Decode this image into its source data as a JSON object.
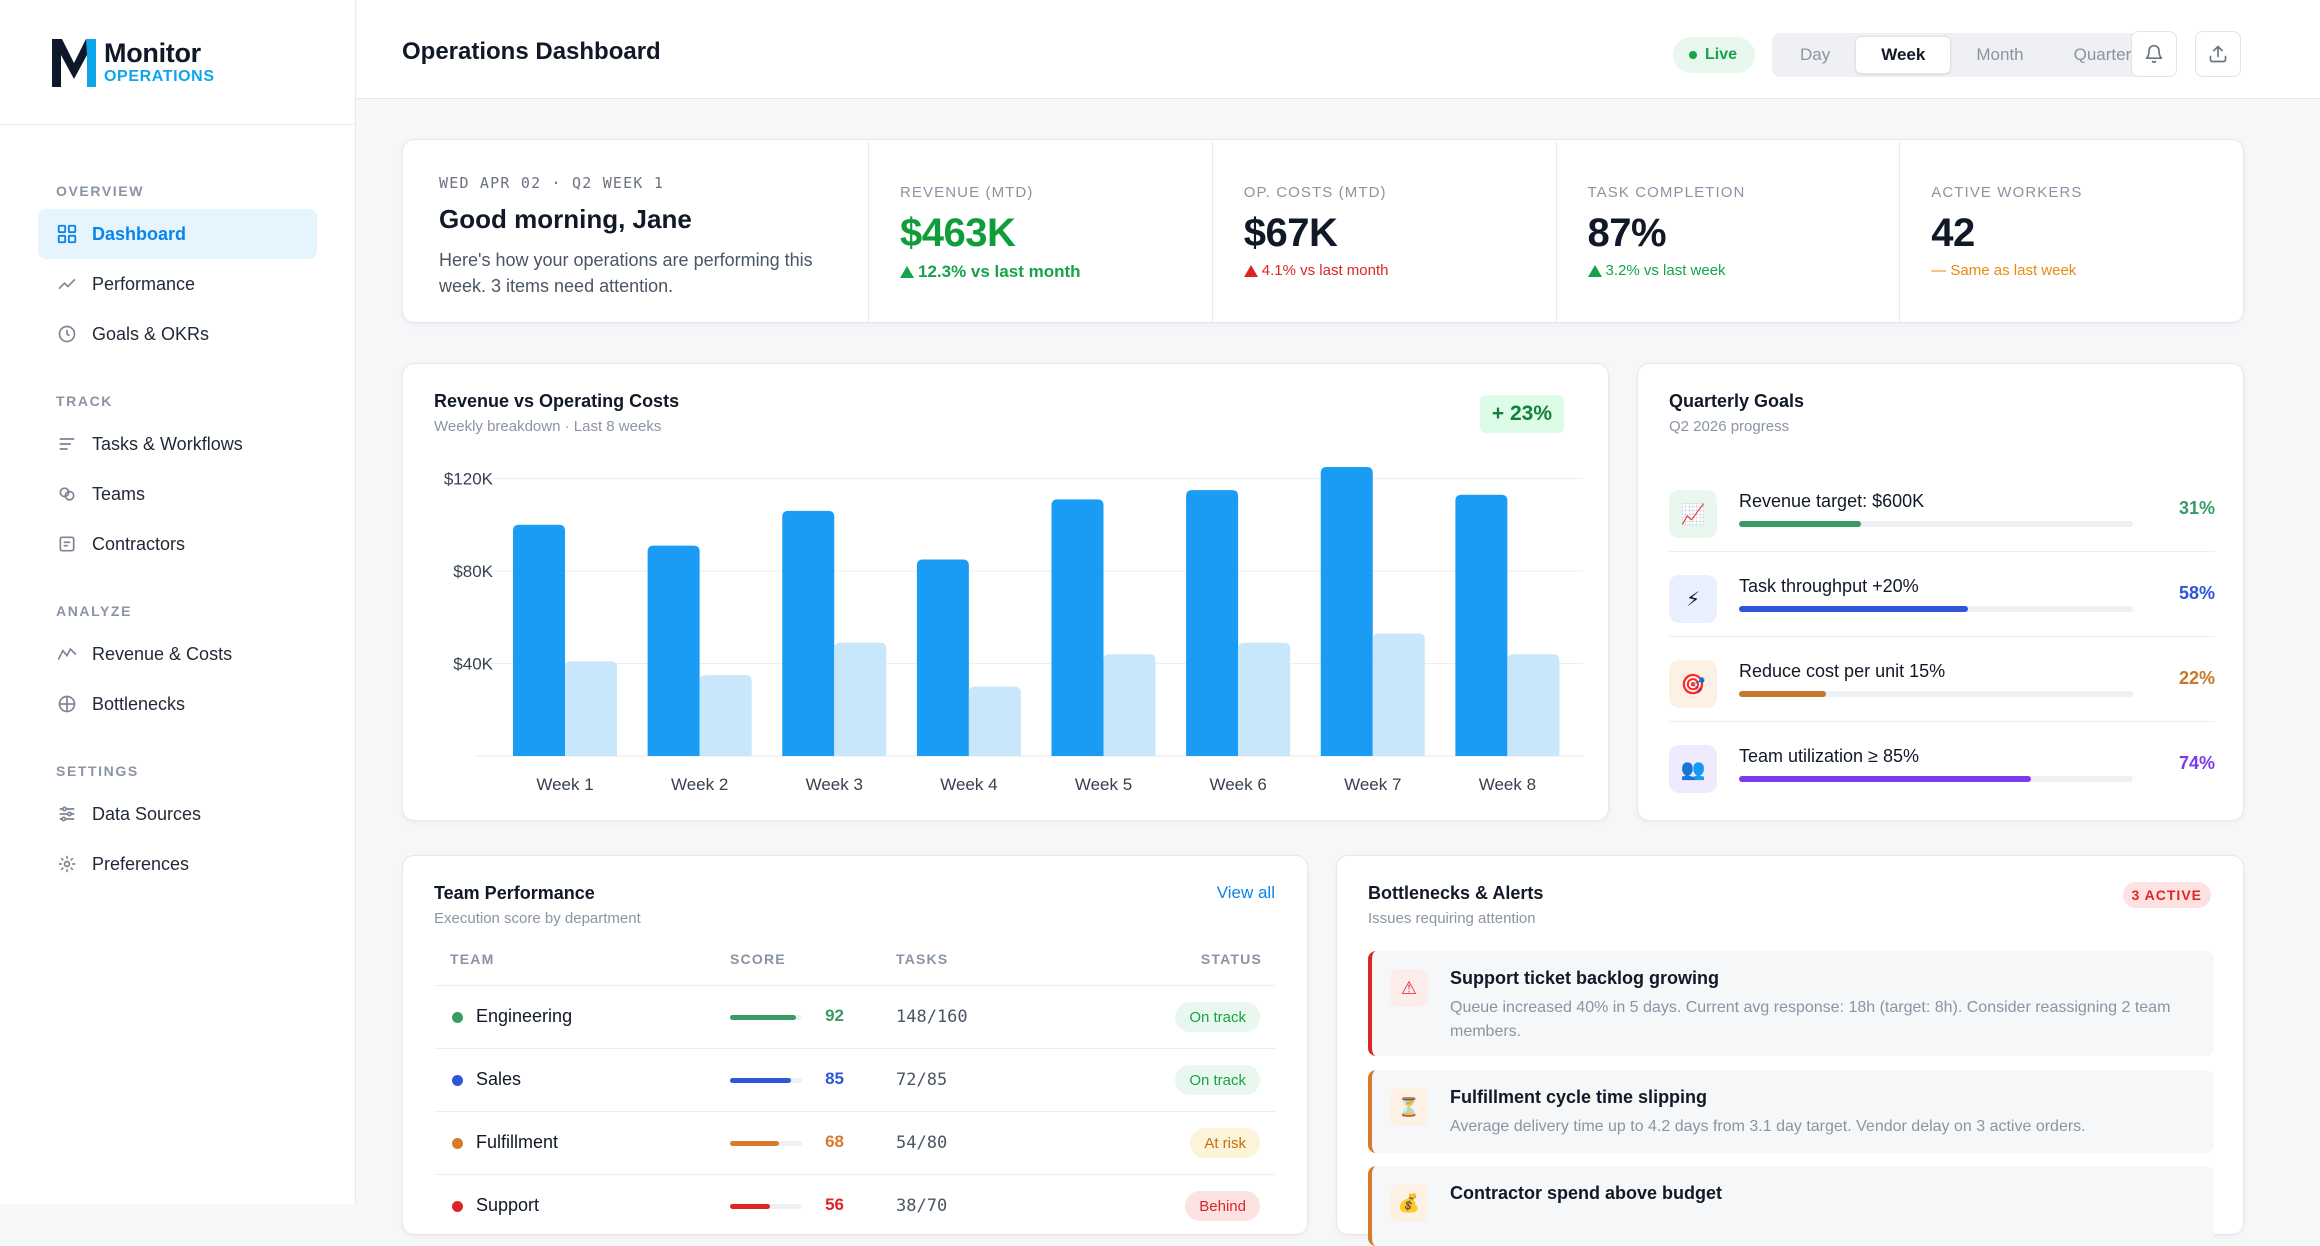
{
  "brand": {
    "name": "Monitor",
    "sub": "OPERATIONS"
  },
  "nav": {
    "sections": [
      {
        "label": "OVERVIEW",
        "items": [
          {
            "label": "Dashboard",
            "icon": "grid-icon",
            "active": true
          },
          {
            "label": "Performance",
            "icon": "trend-line-icon"
          },
          {
            "label": "Goals & OKRs",
            "icon": "clock-icon"
          }
        ]
      },
      {
        "label": "TRACK",
        "items": [
          {
            "label": "Tasks & Workflows",
            "icon": "list-icon"
          },
          {
            "label": "Teams",
            "icon": "team-circles-icon"
          },
          {
            "label": "Contractors",
            "icon": "document-icon"
          }
        ]
      },
      {
        "label": "ANALYZE",
        "items": [
          {
            "label": "Revenue & Costs",
            "icon": "line-chart-icon"
          },
          {
            "label": "Bottlenecks",
            "icon": "crosshair-icon"
          }
        ]
      },
      {
        "label": "SETTINGS",
        "items": [
          {
            "label": "Data Sources",
            "icon": "sliders-icon"
          },
          {
            "label": "Preferences",
            "icon": "sun-gear-icon"
          }
        ]
      }
    ]
  },
  "header": {
    "title": "Operations Dashboard",
    "live": "Live",
    "periods": [
      "Day",
      "Week",
      "Month",
      "Quarter"
    ],
    "active_period": "Week"
  },
  "greeting": {
    "date": "WED APR 02 · Q2 WEEK 1",
    "title": "Good morning, Jane",
    "message": "Here's how your operations are performing this week. 3 items need attention."
  },
  "stats": [
    {
      "label": "REVENUE (MTD)",
      "value": "$463K",
      "change": "12.3% vs last month",
      "trend": "up-green",
      "highlight": true
    },
    {
      "label": "OP. COSTS (MTD)",
      "value": "$67K",
      "change": "4.1% vs last month",
      "trend": "up-red"
    },
    {
      "label": "TASK COMPLETION",
      "value": "87%",
      "change": "3.2% vs last week",
      "trend": "up-green"
    },
    {
      "label": "ACTIVE WORKERS",
      "value": "42",
      "change": "— Same as last week",
      "trend": "flat"
    }
  ],
  "revenue_chart": {
    "title": "Revenue vs Operating Costs",
    "subtitle": "Weekly breakdown · Last 8 weeks",
    "delta": "+ 23%"
  },
  "chart_data": {
    "type": "bar",
    "categories": [
      "Week 1",
      "Week 2",
      "Week 3",
      "Week 4",
      "Week 5",
      "Week 6",
      "Week 7",
      "Week 8"
    ],
    "series": [
      {
        "values": [
          100,
          91,
          106,
          85,
          111,
          115,
          125,
          113
        ],
        "color": "#1a9cf5"
      },
      {
        "values": [
          41,
          35,
          49,
          30,
          44,
          49,
          53,
          44
        ],
        "color": "#c8e7fb"
      }
    ],
    "yticks": [
      40,
      80,
      120
    ],
    "ytick_labels": [
      "$40K",
      "$80K",
      "$120K"
    ],
    "ylim": [
      0,
      125
    ],
    "grid": true
  },
  "goals": {
    "title": "Quarterly Goals",
    "subtitle": "Q2 2026 progress",
    "items": [
      {
        "label": "Revenue target: $600K",
        "pct": "31%",
        "value": 31,
        "color": "#3a9a66",
        "icon": "📈",
        "icon_bg": "#e9f7ef"
      },
      {
        "label": "Task throughput +20%",
        "pct": "58%",
        "value": 58,
        "color": "#2f56d9",
        "icon": "⚡",
        "icon_bg": "#e9efff"
      },
      {
        "label": "Reduce cost per unit 15%",
        "pct": "22%",
        "value": 22,
        "color": "#c4792a",
        "icon": "🎯",
        "icon_bg": "#fdf1e5"
      },
      {
        "label": "Team utilization ≥ 85%",
        "pct": "74%",
        "value": 74,
        "color": "#7c3aed",
        "icon": "👥",
        "icon_bg": "#f0eaff"
      }
    ]
  },
  "team": {
    "title": "Team Performance",
    "subtitle": "Execution score by department",
    "view_all": "View all",
    "columns": [
      "TEAM",
      "SCORE",
      "TASKS",
      "STATUS"
    ],
    "rows": [
      {
        "name": "Engineering",
        "score": "92",
        "value": 92,
        "tasks": "148/160",
        "status": "On track",
        "color": "#3a9a66"
      },
      {
        "name": "Sales",
        "score": "85",
        "value": 85,
        "tasks": "72/85",
        "status": "On track",
        "color": "#2f56d9"
      },
      {
        "name": "Fulfillment",
        "score": "68",
        "value": 68,
        "tasks": "54/80",
        "status": "At risk",
        "color": "#d97a2b"
      },
      {
        "name": "Support",
        "score": "56",
        "value": 56,
        "tasks": "38/70",
        "status": "Behind",
        "color": "#dc2626"
      }
    ]
  },
  "alerts": {
    "title": "Bottlenecks & Alerts",
    "subtitle": "Issues requiring attention",
    "badge": "3 ACTIVE",
    "items": [
      {
        "title": "Support ticket backlog growing",
        "desc": "Queue increased 40% in 5 days. Current avg response: 18h (target: 8h). Consider reassigning 2 team members.",
        "icon": "⚠",
        "color": "#dc2626",
        "icon_bg": "#fdecec"
      },
      {
        "title": "Fulfillment cycle time slipping",
        "desc": "Average delivery time up to 4.2 days from 3.1 day target. Vendor delay on 3 active orders.",
        "icon": "⏳",
        "color": "#d97a2b",
        "icon_bg": "#fdf1e5"
      },
      {
        "title": "Contractor spend above budget",
        "desc": "",
        "icon": "💰",
        "color": "#d97a2b",
        "icon_bg": "#fdf1e5"
      }
    ]
  }
}
